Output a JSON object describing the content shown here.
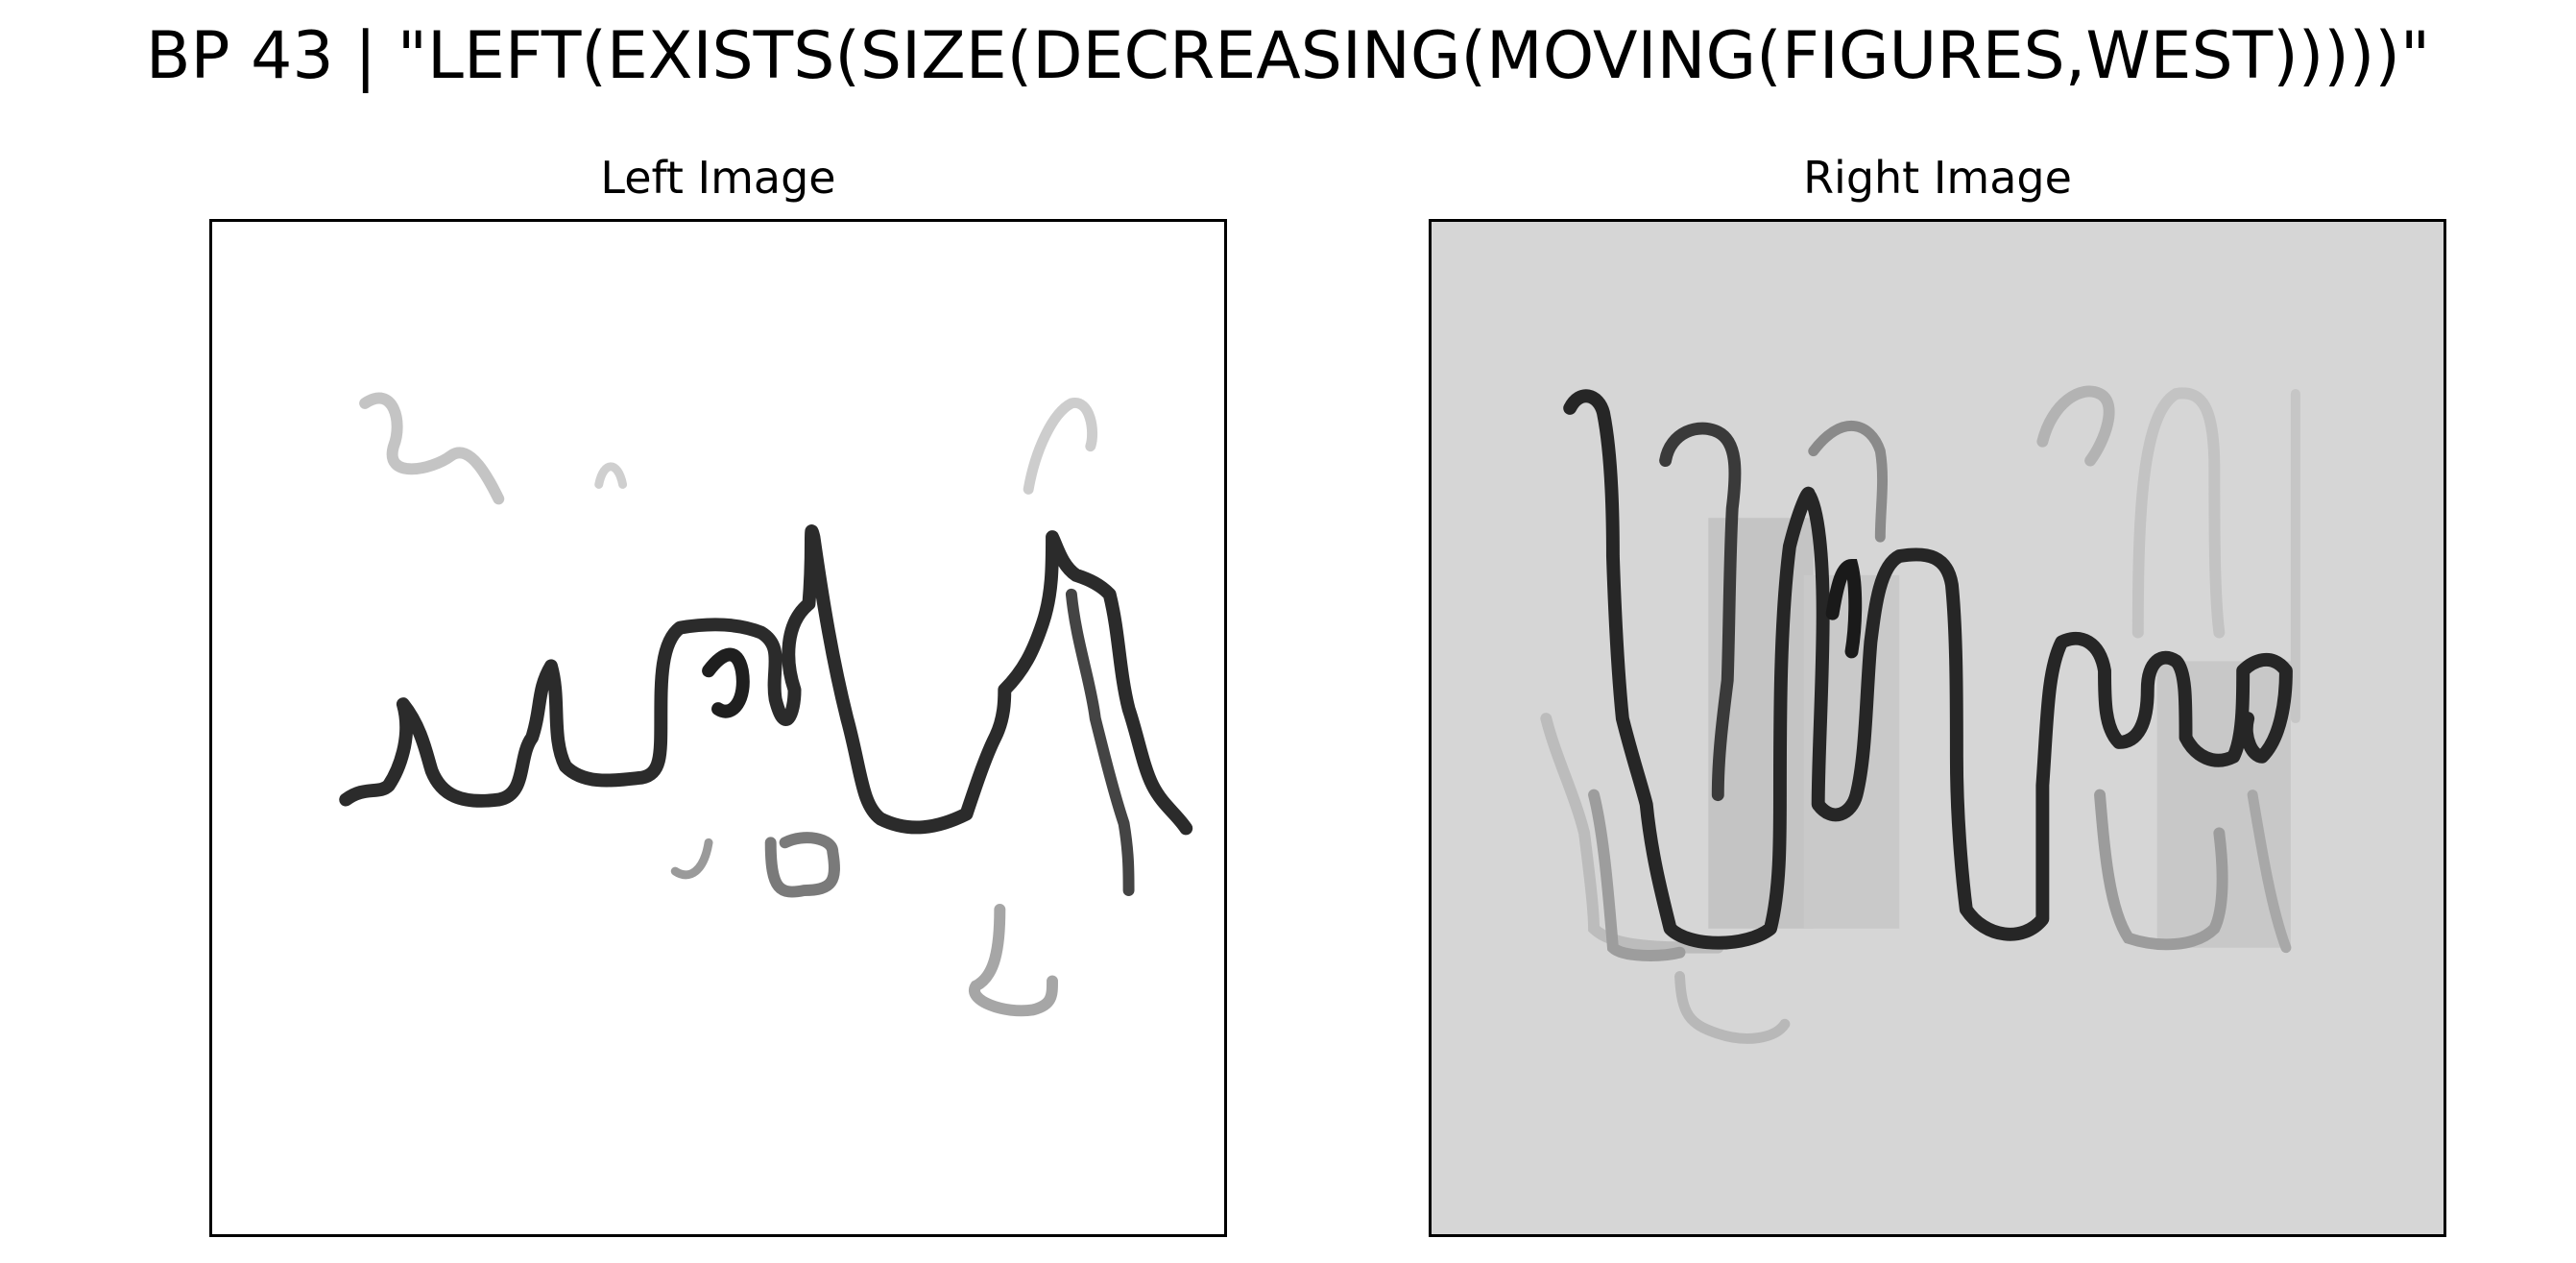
{
  "figure": {
    "title": "BP 43 | \"LEFT(EXISTS(SIZE(DECREASING(MOVING(FIGURES,WEST)))))\""
  },
  "panels": [
    {
      "title": "Left Image",
      "background": "#ffffff"
    },
    {
      "title": "Right Image",
      "background": "#d6d6d6"
    }
  ],
  "colors": {
    "ink_dark": "#222222",
    "ink_mid": "#555555",
    "ink_faint": "#bdbdbd",
    "frame": "#000000"
  }
}
